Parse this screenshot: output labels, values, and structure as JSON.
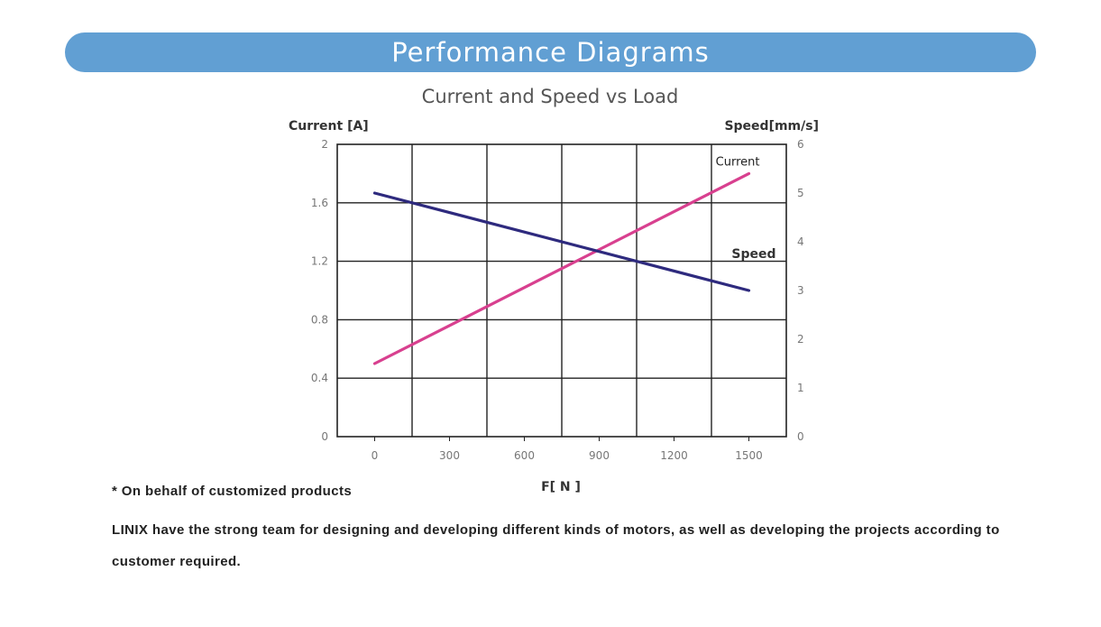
{
  "header": {
    "title": "Performance Diagrams"
  },
  "chart_data": {
    "type": "line",
    "title": "Current and Speed vs Load",
    "xlabel": "F[ N ]",
    "ylabel_left": "Current [A]",
    "ylabel_right": "Speed[mm/s]",
    "x_ticks": [
      "0",
      "300",
      "600",
      "900",
      "1200",
      "1500"
    ],
    "y_left_ticks": [
      "0",
      "0.4",
      "0.8",
      "1.2",
      "1.6",
      "2"
    ],
    "y_right_ticks": [
      "0",
      "1",
      "2",
      "3",
      "4",
      "5",
      "6"
    ],
    "xlim": [
      -150,
      1650
    ],
    "ylim_left": [
      0,
      2
    ],
    "ylim_right": [
      0,
      6
    ],
    "grid": true,
    "series": [
      {
        "name": "Current",
        "axis": "left",
        "color": "#d8408f",
        "x": [
          0,
          1500
        ],
        "y": [
          0.5,
          1.8
        ]
      },
      {
        "name": "Speed",
        "axis": "right",
        "color": "#2e2a7e",
        "x": [
          0,
          1500
        ],
        "y": [
          5.0,
          3.0
        ]
      }
    ]
  },
  "notes": {
    "footnote": "* On behalf of customized products",
    "description": "LINIX have the strong team for designing and developing different kinds of motors, as well as developing the projects according to customer required."
  }
}
